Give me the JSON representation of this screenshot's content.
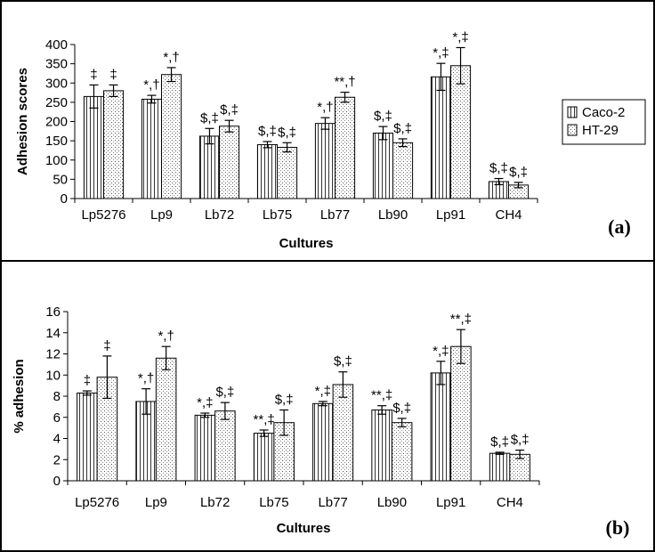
{
  "chart_data": [
    {
      "type": "bar",
      "panel_label": "(a)",
      "xlabel": "Cultures",
      "ylabel": "Adhesion scores",
      "ylim": [
        0,
        400
      ],
      "yticks": [
        0,
        50,
        100,
        150,
        200,
        250,
        300,
        350,
        400
      ],
      "categories": [
        "Lp5276",
        "Lp9",
        "Lb72",
        "Lb75",
        "Lb77",
        "Lb90",
        "Lp91",
        "CH4"
      ],
      "legend_position": "right",
      "series": [
        {
          "name": "Caco-2",
          "pattern": "vertical-lines",
          "values": [
            265,
            258,
            162,
            140,
            195,
            170,
            316,
            44
          ],
          "errors": [
            30,
            10,
            20,
            8,
            15,
            17,
            35,
            8
          ],
          "annotations": [
            "‡",
            "*,†",
            "$,‡",
            "$,‡",
            "*,†",
            "$,‡",
            "*,‡",
            "$,‡"
          ]
        },
        {
          "name": "HT-29",
          "pattern": "dots",
          "values": [
            280,
            322,
            188,
            133,
            263,
            145,
            345,
            35
          ],
          "errors": [
            15,
            18,
            15,
            12,
            13,
            10,
            47,
            7
          ],
          "annotations": [
            "‡",
            "*,†",
            "$,‡",
            "$,‡",
            "**,†",
            "$,‡",
            "*,‡",
            "$,‡"
          ]
        }
      ]
    },
    {
      "type": "bar",
      "panel_label": "(b)",
      "xlabel": "Cultures",
      "ylabel": "% adhesion",
      "ylim": [
        0,
        16
      ],
      "yticks": [
        0,
        2,
        4,
        6,
        8,
        10,
        12,
        14,
        16
      ],
      "categories": [
        "Lp5276",
        "Lp9",
        "Lb72",
        "Lb75",
        "Lb77",
        "Lb90",
        "Lp91",
        "CH4"
      ],
      "series": [
        {
          "name": "Caco-2",
          "pattern": "vertical-lines",
          "values": [
            8.3,
            7.5,
            6.2,
            4.5,
            7.3,
            6.7,
            10.2,
            2.6
          ],
          "errors": [
            0.2,
            1.2,
            0.2,
            0.3,
            0.2,
            0.4,
            1.1,
            0.1
          ],
          "annotations": [
            "‡",
            "*,†",
            "*,‡",
            "**,‡",
            "*,‡",
            "**,‡",
            "*,‡",
            "$,‡"
          ]
        },
        {
          "name": "HT-29",
          "pattern": "dots",
          "values": [
            9.8,
            11.6,
            6.6,
            5.5,
            9.1,
            5.5,
            12.7,
            2.5
          ],
          "errors": [
            2.0,
            1.1,
            0.8,
            1.2,
            1.2,
            0.4,
            1.6,
            0.4
          ],
          "annotations": [
            "‡",
            "*,†",
            "$,‡",
            "$,‡",
            "$,‡",
            "$,‡",
            "**,‡",
            "$,‡"
          ]
        }
      ]
    }
  ]
}
